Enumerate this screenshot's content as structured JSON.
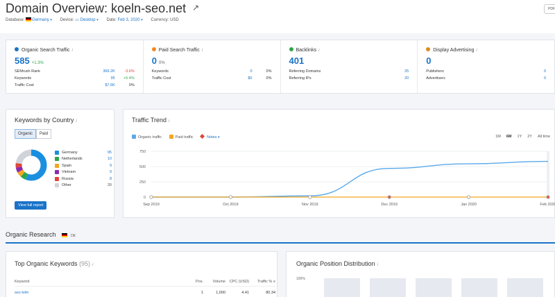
{
  "header": {
    "title_prefix": "Domain Overview:",
    "domain": "koeln-seo.net",
    "pdf_label": "PDF",
    "filters": {
      "database_label": "Database:",
      "database_value": "Germany",
      "device_label": "Device:",
      "device_value": "Desktop",
      "date_label": "Date:",
      "date_value": "Feb 3, 2020",
      "currency_label": "Currency:",
      "currency_value": "USD"
    }
  },
  "metrics": {
    "organic": {
      "label": "Organic Search Traffic",
      "value": "585",
      "change": "+1.3%",
      "rows": [
        {
          "label": "SEMrush Rank",
          "value": "369.2K",
          "change": "-3.6%"
        },
        {
          "label": "Keywords",
          "value": "95",
          "change": "+5.4%"
        },
        {
          "label": "Traffic Cost",
          "value": "$7.6K",
          "change": "0%"
        }
      ]
    },
    "paid": {
      "label": "Paid Search Traffic",
      "value": "0",
      "change": "0%",
      "rows": [
        {
          "label": "Keywords",
          "value": "0",
          "change": "0%"
        },
        {
          "label": "Traffic Cost",
          "value": "$0",
          "change": "0%"
        }
      ]
    },
    "backlinks": {
      "label": "Backlinks",
      "value": "401",
      "rows": [
        {
          "label": "Referring Domains",
          "value": "25"
        },
        {
          "label": "Referring IPs",
          "value": "20"
        }
      ]
    },
    "display": {
      "label": "Display Advertising",
      "value": "0",
      "rows": [
        {
          "label": "Publishers",
          "value": "0"
        },
        {
          "label": "Advertisers",
          "value": "0"
        }
      ]
    },
    "colors": {
      "organic": "#1a73c8",
      "paid": "#f28a1e",
      "backlinks": "#2ca64a",
      "display": "#e08a1e"
    }
  },
  "keywords_by_country": {
    "title": "Keywords by Country",
    "tabs": [
      "Organic",
      "Paid"
    ],
    "countries": [
      {
        "name": "Germany",
        "count": 95,
        "color": "#1a8fe0"
      },
      {
        "name": "Netherlands",
        "count": 10,
        "color": "#2ca64a"
      },
      {
        "name": "Spain",
        "count": 9,
        "color": "#f2a622"
      },
      {
        "name": "Vietnam",
        "count": 9,
        "color": "#8a2ab0"
      },
      {
        "name": "Russia",
        "count": 8,
        "color": "#e0453a"
      },
      {
        "name": "Other",
        "count": 39,
        "color": "#d0d3d9"
      }
    ],
    "button": "View full report"
  },
  "traffic_trend": {
    "title": "Traffic Trend",
    "legend": {
      "organic": "Organic traffic",
      "paid": "Paid traffic",
      "notes": "Notes"
    },
    "ranges": [
      "1M",
      "6M",
      "1Y",
      "2Y",
      "All time"
    ],
    "selected_range": "6M"
  },
  "chart_data": {
    "type": "line",
    "x": [
      "Sep 2019",
      "Oct 2019",
      "Nov 2019",
      "Dec 2019",
      "Jan 2020",
      "Feb 2020"
    ],
    "series": [
      {
        "name": "Organic traffic",
        "values": [
          0,
          0,
          20,
          470,
          545,
          585
        ]
      },
      {
        "name": "Paid traffic",
        "values": [
          0,
          0,
          0,
          0,
          0,
          0
        ]
      }
    ],
    "yticks": [
      "0",
      "250",
      "500",
      "750"
    ],
    "ylim": [
      0,
      750
    ],
    "grid": true
  },
  "organic_research": {
    "title": "Organic Research",
    "database": "DE"
  },
  "top_keywords": {
    "title": "Top Organic Keywords",
    "count": "(95)",
    "columns": [
      "Keyword",
      "Pos.",
      "Volume",
      "CPC (USD)",
      "Traffic %"
    ],
    "rows": [
      {
        "keyword": "seo köln",
        "pos": "1",
        "volume": "1,000",
        "cpc": "4.41",
        "traffic": "80.34"
      }
    ]
  },
  "position_distribution": {
    "title": "Organic Position Distribution",
    "axis_label": "100%"
  }
}
